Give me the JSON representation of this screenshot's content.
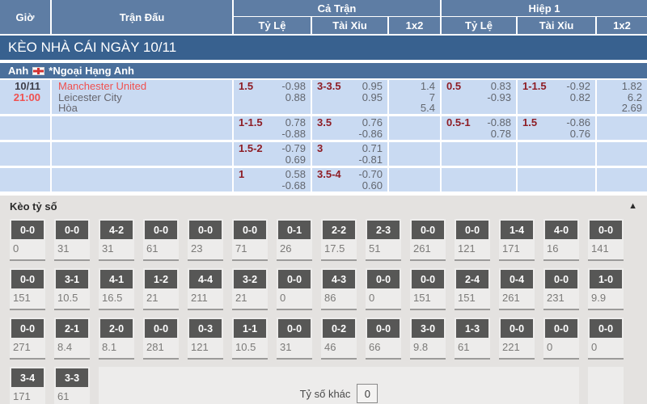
{
  "colors": {
    "header_blue": "#5e7da4",
    "title_bar_blue": "#38618f",
    "league_bar_blue": "#4a6f9b",
    "row_blue": "#c9daf2",
    "handicap_red": "#8e1d25",
    "odds_gray": "#62666e",
    "team_red": "#f0504f",
    "section_gray": "#e4e2e0",
    "score_cell_gray": "#edeceb",
    "score_button_gray": "#575756"
  },
  "table": {
    "header": {
      "time": "Giờ",
      "match": "Trận Đấu",
      "full_time": "Cả Trận",
      "first_half": "Hiệp 1",
      "sub": [
        "Tỷ Lệ",
        "Tài Xỉu",
        "1x2"
      ]
    },
    "date_title": "KÈO NHÀ CÁI NGÀY 10/11",
    "league": {
      "country": "Anh",
      "flag_icon": "england-flag-icon",
      "name": "*Ngoại Hạng Anh"
    },
    "match": {
      "date": "10/11",
      "time": "21:00",
      "home": "Manchester United",
      "away": "Leicester City",
      "draw_label": "Hòa"
    },
    "odds_rows": [
      {
        "ft_hdp": "1.5",
        "ft_hdp_odds": [
          "-0.98",
          "0.88"
        ],
        "ft_ou": "3-3.5",
        "ft_ou_odds": [
          "0.95",
          "0.95"
        ],
        "ft_1x2": [
          "1.4",
          "7",
          "5.4"
        ],
        "h1_hdp": "0.5",
        "h1_hdp_odds": [
          "0.83",
          "-0.93"
        ],
        "h1_ou": "1-1.5",
        "h1_ou_odds": [
          "-0.92",
          "0.82"
        ],
        "h1_1x2": [
          "1.82",
          "6.2",
          "2.69"
        ]
      },
      {
        "ft_hdp": "1-1.5",
        "ft_hdp_odds": [
          "0.78",
          "-0.88"
        ],
        "ft_ou": "3.5",
        "ft_ou_odds": [
          "0.76",
          "-0.86"
        ],
        "ft_1x2": [],
        "h1_hdp": "0.5-1",
        "h1_hdp_odds": [
          "-0.88",
          "0.78"
        ],
        "h1_ou": "1.5",
        "h1_ou_odds": [
          "-0.86",
          "0.76"
        ],
        "h1_1x2": []
      },
      {
        "ft_hdp": "1.5-2",
        "ft_hdp_odds": [
          "-0.79",
          "0.69"
        ],
        "ft_ou": "3",
        "ft_ou_odds": [
          "0.71",
          "-0.81"
        ],
        "ft_1x2": [],
        "h1_hdp": "",
        "h1_hdp_odds": [],
        "h1_ou": "",
        "h1_ou_odds": [],
        "h1_1x2": []
      },
      {
        "ft_hdp": "1",
        "ft_hdp_odds": [
          "0.58",
          "-0.68"
        ],
        "ft_ou": "3.5-4",
        "ft_ou_odds": [
          "-0.70",
          "0.60"
        ],
        "ft_1x2": [],
        "h1_hdp": "",
        "h1_hdp_odds": [],
        "h1_ou": "",
        "h1_ou_odds": [],
        "h1_1x2": []
      }
    ]
  },
  "score_section": {
    "title": "Kèo tỷ số",
    "collapse_icon": "▲",
    "rows": [
      [
        {
          "score": "0-0",
          "odds": "0"
        },
        {
          "score": "0-0",
          "odds": "31"
        },
        {
          "score": "4-2",
          "odds": "31"
        },
        {
          "score": "0-0",
          "odds": "61"
        },
        {
          "score": "0-0",
          "odds": "23"
        },
        {
          "score": "0-0",
          "odds": "71"
        },
        {
          "score": "0-1",
          "odds": "26"
        },
        {
          "score": "2-2",
          "odds": "17.5"
        },
        {
          "score": "2-3",
          "odds": "51"
        },
        {
          "score": "0-0",
          "odds": "261"
        },
        {
          "score": "0-0",
          "odds": "121"
        },
        {
          "score": "1-4",
          "odds": "171"
        },
        {
          "score": "4-0",
          "odds": "16"
        },
        {
          "score": "0-0",
          "odds": "141"
        }
      ],
      [
        {
          "score": "0-0",
          "odds": "151"
        },
        {
          "score": "3-1",
          "odds": "10.5"
        },
        {
          "score": "4-1",
          "odds": "16.5"
        },
        {
          "score": "1-2",
          "odds": "21"
        },
        {
          "score": "4-4",
          "odds": "211"
        },
        {
          "score": "3-2",
          "odds": "21"
        },
        {
          "score": "0-0",
          "odds": "0"
        },
        {
          "score": "4-3",
          "odds": "86"
        },
        {
          "score": "0-0",
          "odds": "0"
        },
        {
          "score": "0-0",
          "odds": "151"
        },
        {
          "score": "2-4",
          "odds": "151"
        },
        {
          "score": "0-4",
          "odds": "261"
        },
        {
          "score": "0-0",
          "odds": "231"
        },
        {
          "score": "1-0",
          "odds": "9.9"
        }
      ],
      [
        {
          "score": "0-0",
          "odds": "271"
        },
        {
          "score": "2-1",
          "odds": "8.4"
        },
        {
          "score": "2-0",
          "odds": "8.1"
        },
        {
          "score": "0-0",
          "odds": "281"
        },
        {
          "score": "0-3",
          "odds": "121"
        },
        {
          "score": "1-1",
          "odds": "10.5"
        },
        {
          "score": "0-0",
          "odds": "31"
        },
        {
          "score": "0-2",
          "odds": "46"
        },
        {
          "score": "0-0",
          "odds": "66"
        },
        {
          "score": "3-0",
          "odds": "9.8"
        },
        {
          "score": "1-3",
          "odds": "61"
        },
        {
          "score": "0-0",
          "odds": "221"
        },
        {
          "score": "0-0",
          "odds": "0"
        },
        {
          "score": "0-0",
          "odds": "0"
        }
      ],
      [
        {
          "score": "3-4",
          "odds": "171"
        },
        {
          "score": "3-3",
          "odds": "61"
        }
      ]
    ],
    "other": {
      "label": "Tỷ số khác",
      "value": "0"
    }
  }
}
